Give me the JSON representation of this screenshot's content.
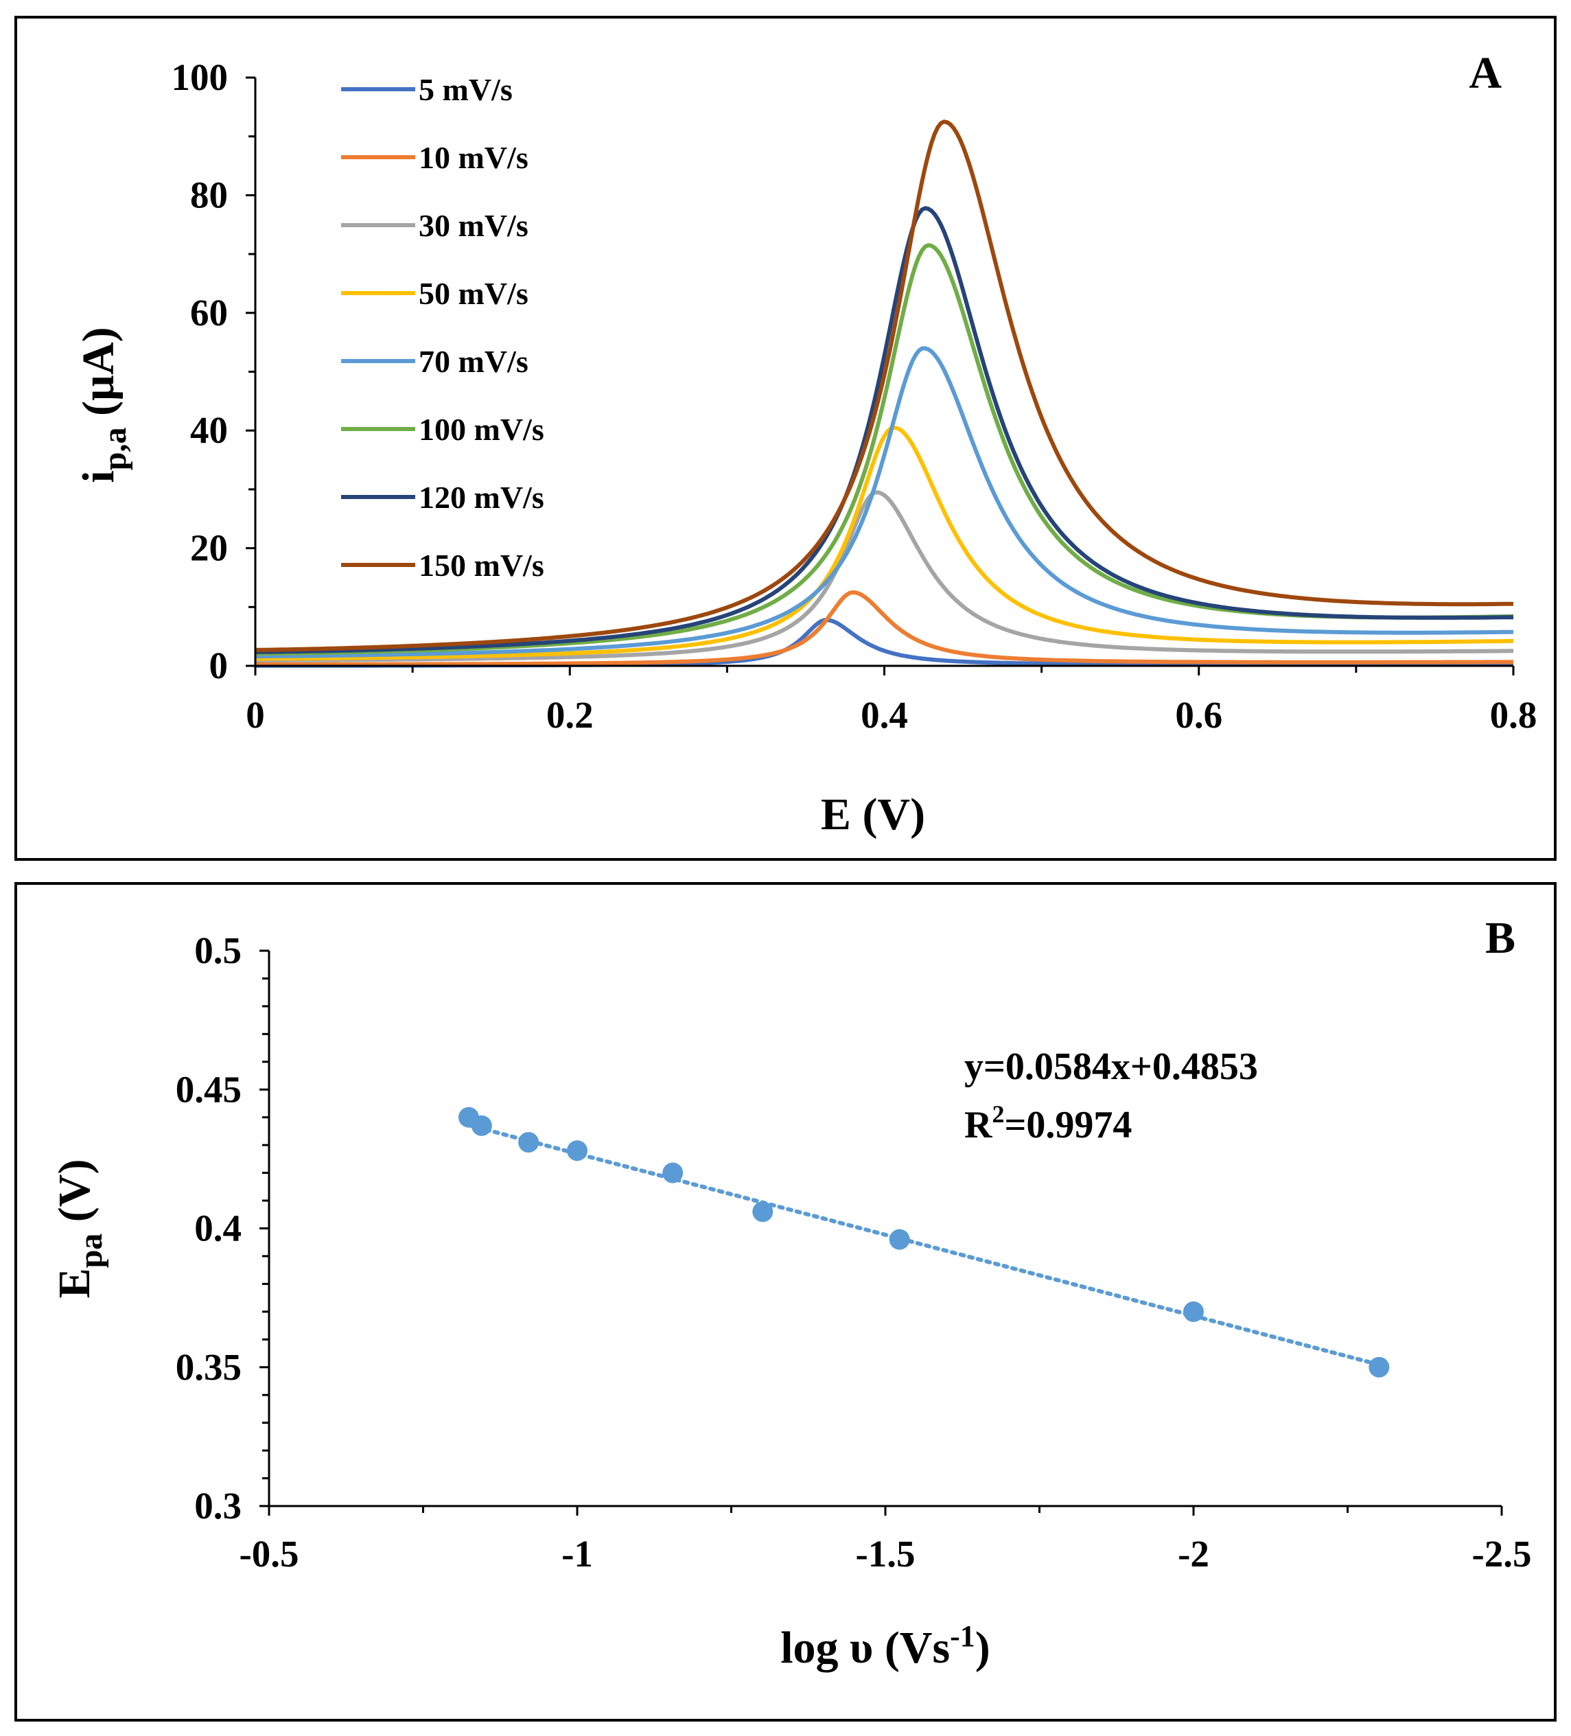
{
  "chart_data": [
    {
      "panel": "A",
      "type": "line",
      "xlabel": "E (V)",
      "ylabel": {
        "main": "i",
        "sub": "p,a",
        "unit": " (µA)"
      },
      "xlim": [
        0,
        0.8
      ],
      "ylim": [
        0,
        100
      ],
      "x_ticks": [
        0,
        0.2,
        0.4,
        0.6,
        0.8
      ],
      "x_tick_labels": [
        "0",
        "0.2",
        "0.4",
        "0.6",
        "0.8"
      ],
      "y_ticks": [
        0,
        20,
        40,
        60,
        80,
        100
      ],
      "y_tick_labels": [
        "0",
        "20",
        "40",
        "60",
        "80",
        "100"
      ],
      "grid": false,
      "legend_position": "top-left",
      "series": [
        {
          "name": "5 mV/s",
          "color": "#4472C4",
          "peak_E": 0.363,
          "peak_i": 7.8,
          "baseline_start": 0.0,
          "baseline_end": 0.3,
          "width": 0.022
        },
        {
          "name": "10 mV/s",
          "color": "#ED7D31",
          "peak_E": 0.38,
          "peak_i": 12.5,
          "baseline_start": 0.2,
          "baseline_end": 0.6,
          "width": 0.025
        },
        {
          "name": "30 mV/s",
          "color": "#A5A5A5",
          "peak_E": 0.395,
          "peak_i": 29.5,
          "baseline_start": 0.8,
          "baseline_end": 2.3,
          "width": 0.032
        },
        {
          "name": "50 mV/s",
          "color": "#FFC000",
          "peak_E": 0.406,
          "peak_i": 40.5,
          "baseline_start": 1.0,
          "baseline_end": 3.8,
          "width": 0.036
        },
        {
          "name": "70 mV/s",
          "color": "#5B9BD5",
          "peak_E": 0.425,
          "peak_i": 54.0,
          "baseline_start": 1.3,
          "baseline_end": 5.0,
          "width": 0.04
        },
        {
          "name": "100 mV/s",
          "color": "#70AD47",
          "peak_E": 0.428,
          "peak_i": 71.5,
          "baseline_start": 1.6,
          "baseline_end": 7.3,
          "width": 0.042
        },
        {
          "name": "120 mV/s",
          "color": "#264478",
          "peak_E": 0.426,
          "peak_i": 77.8,
          "baseline_start": 1.8,
          "baseline_end": 7.0,
          "width": 0.043
        },
        {
          "name": "150 mV/s",
          "color": "#9E480E",
          "peak_E": 0.438,
          "peak_i": 92.5,
          "baseline_start": 2.0,
          "baseline_end": 8.7,
          "width": 0.046
        }
      ],
      "annotation": "A"
    },
    {
      "panel": "B",
      "type": "scatter",
      "xlabel": {
        "main": "log υ (Vs",
        "sup": "-1",
        "tail": ")"
      },
      "ylabel": {
        "main": "E",
        "sub": "pa",
        "unit": "  (V)"
      },
      "xlim": [
        -0.5,
        -2.5
      ],
      "ylim": [
        0.3,
        0.5
      ],
      "x_ticks": [
        -0.5,
        -1,
        -1.5,
        -2,
        -2.5
      ],
      "x_tick_labels": [
        "-0.5",
        "-1",
        "-1.5",
        "-2",
        "-2.5"
      ],
      "y_ticks": [
        0.3,
        0.35,
        0.4,
        0.45,
        0.5
      ],
      "y_tick_labels": [
        "0.3",
        "0.35",
        "0.4",
        "0.45",
        "0.5"
      ],
      "grid": false,
      "color": "#5B9BD5",
      "points": [
        {
          "x": -0.824,
          "y": 0.44
        },
        {
          "x": -0.845,
          "y": 0.437
        },
        {
          "x": -0.921,
          "y": 0.431
        },
        {
          "x": -1.0,
          "y": 0.428
        },
        {
          "x": -1.155,
          "y": 0.42
        },
        {
          "x": -1.301,
          "y": 0.406
        },
        {
          "x": -1.523,
          "y": 0.396
        },
        {
          "x": -2.0,
          "y": 0.37
        },
        {
          "x": -2.301,
          "y": 0.35
        }
      ],
      "trendline": {
        "slope": 0.0584,
        "intercept": 0.4853,
        "style": "dotted",
        "x_from": -0.824,
        "x_to": -2.301
      },
      "equation": "y=0.0584x+0.4853",
      "r2": {
        "main": "R",
        "sup": "2",
        "tail": "=0.9974"
      },
      "annotation": "B"
    }
  ]
}
